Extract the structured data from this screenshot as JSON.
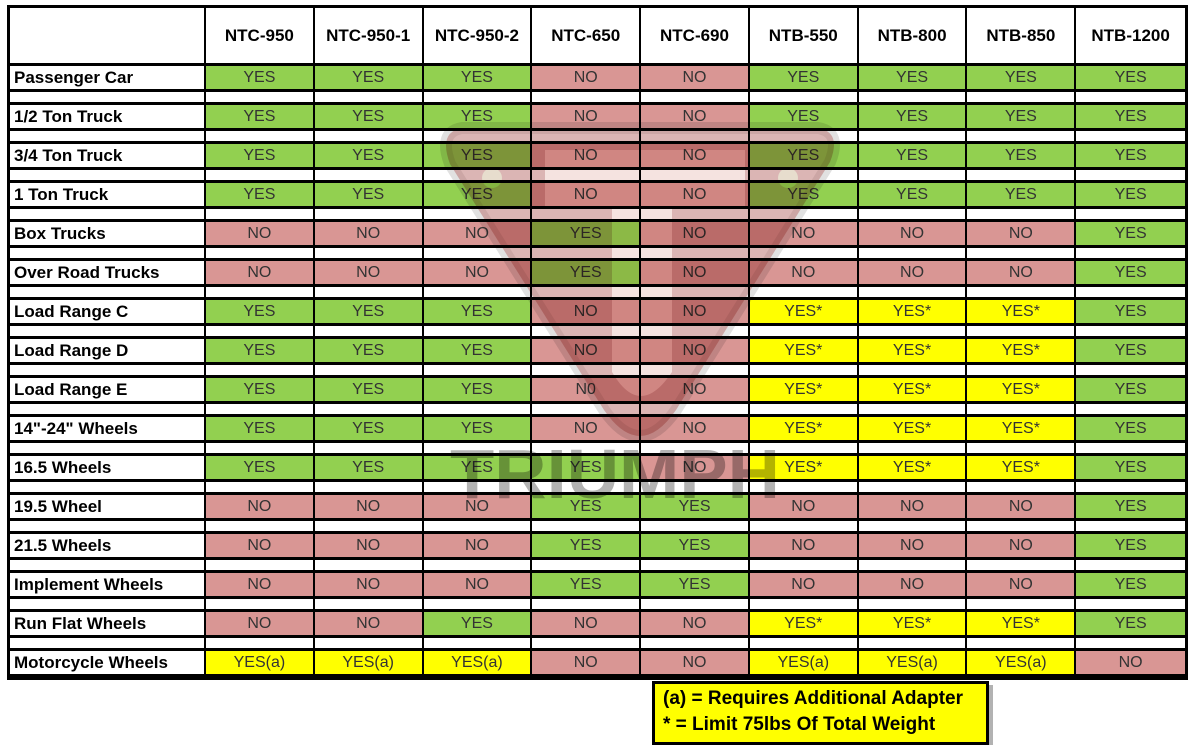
{
  "chart_data": {
    "type": "table",
    "columns": [
      "NTC-950",
      "NTC-950-1",
      "NTC-950-2",
      "NTC-650",
      "NTC-690",
      "NTB-550",
      "NTB-800",
      "NTB-850",
      "NTB-1200"
    ],
    "rows": [
      {
        "label": "Passenger Car",
        "values": [
          "YES",
          "YES",
          "YES",
          "NO",
          "NO",
          "YES",
          "YES",
          "YES",
          "YES"
        ]
      },
      {
        "label": "1/2 Ton Truck",
        "values": [
          "YES",
          "YES",
          "YES",
          "NO",
          "NO",
          "YES",
          "YES",
          "YES",
          "YES"
        ]
      },
      {
        "label": "3/4 Ton Truck",
        "values": [
          "YES",
          "YES",
          "YES",
          "NO",
          "NO",
          "YES",
          "YES",
          "YES",
          "YES"
        ]
      },
      {
        "label": "1 Ton Truck",
        "values": [
          "YES",
          "YES",
          "YES",
          "NO",
          "NO",
          "YES",
          "YES",
          "YES",
          "YES"
        ]
      },
      {
        "label": "Box Trucks",
        "values": [
          "NO",
          "NO",
          "NO",
          "YES",
          "NO",
          "NO",
          "NO",
          "NO",
          "YES"
        ]
      },
      {
        "label": "Over Road Trucks",
        "values": [
          "NO",
          "NO",
          "NO",
          "YES",
          "NO",
          "NO",
          "NO",
          "NO",
          "YES"
        ]
      },
      {
        "label": "Load Range C",
        "values": [
          "YES",
          "YES",
          "YES",
          "NO",
          "NO",
          "YES*",
          "YES*",
          "YES*",
          "YES"
        ]
      },
      {
        "label": "Load Range D",
        "values": [
          "YES",
          "YES",
          "YES",
          "NO",
          "NO",
          "YES*",
          "YES*",
          "YES*",
          "YES"
        ]
      },
      {
        "label": "Load Range E",
        "values": [
          "YES",
          "YES",
          "YES",
          "N0",
          "NO",
          "YES*",
          "YES*",
          "YES*",
          "YES"
        ]
      },
      {
        "label": "14\"-24\" Wheels",
        "values": [
          "YES",
          "YES",
          "YES",
          "NO",
          "NO",
          "YES*",
          "YES*",
          "YES*",
          "YES"
        ]
      },
      {
        "label": "16.5 Wheels",
        "values": [
          "YES",
          "YES",
          "YES",
          "YES",
          "NO",
          "YES*",
          "YES*",
          "YES*",
          "YES"
        ]
      },
      {
        "label": "19.5 Wheel",
        "values": [
          "NO",
          "NO",
          "NO",
          "YES",
          "YES",
          "NO",
          "NO",
          "NO",
          "YES"
        ]
      },
      {
        "label": "21.5 Wheels",
        "values": [
          "NO",
          "NO",
          "NO",
          "YES",
          "YES",
          "NO",
          "NO",
          "NO",
          "YES"
        ]
      },
      {
        "label": "Implement Wheels",
        "values": [
          "NO",
          "NO",
          "NO",
          "YES",
          "YES",
          "NO",
          "NO",
          "NO",
          "YES"
        ]
      },
      {
        "label": "Run Flat Wheels",
        "values": [
          "NO",
          "NO",
          "YES",
          "NO",
          "NO",
          "YES*",
          "YES*",
          "YES*",
          "YES"
        ]
      },
      {
        "label": "Motorcycle Wheels",
        "values": [
          "YES(a)",
          "YES(a)",
          "YES(a)",
          "NO",
          "NO",
          "YES(a)",
          "YES(a)",
          "YES(a)",
          "NO"
        ]
      }
    ]
  },
  "legend": {
    "lines": [
      "(a) = Requires Additional Adapter",
      "* = Limit 75lbs Of Total Weight"
    ]
  },
  "watermark": {
    "text": "TRIUMPH"
  },
  "colors": {
    "yes_bg": "#92d050",
    "no_bg": "#d99694",
    "conditional_bg": "#ffff00",
    "legend_bg": "#ffff00",
    "border": "#000000",
    "value_text": "#333333",
    "watermark_red": "#a9524d"
  }
}
